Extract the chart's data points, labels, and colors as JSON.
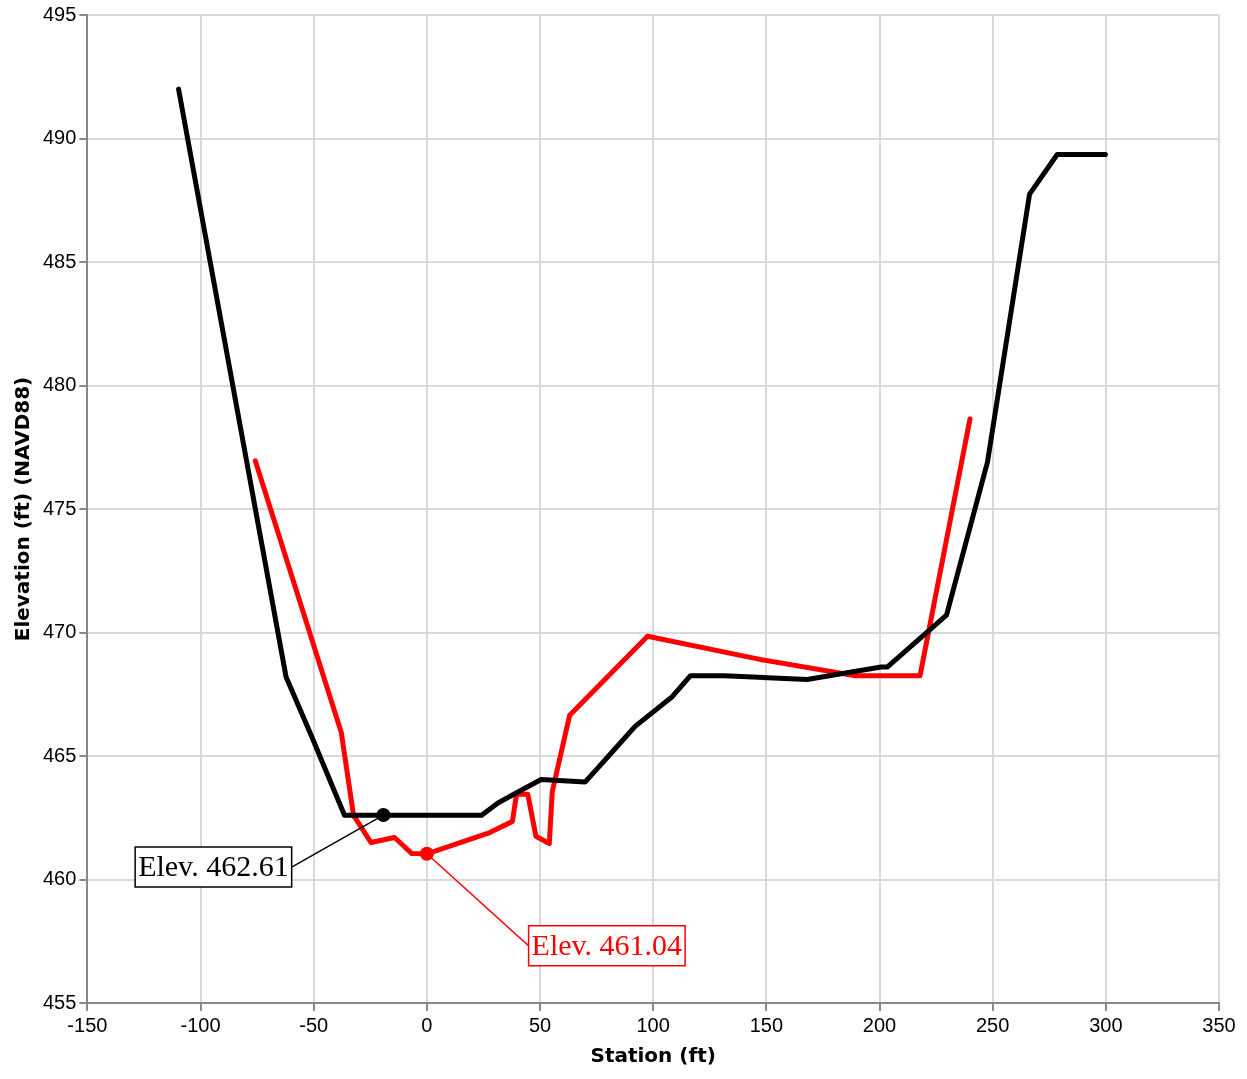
{
  "chart_data": {
    "type": "line",
    "xlabel": "Station (ft)",
    "ylabel": "Elevation (ft) (NAVD88)",
    "xlim": [
      -150,
      350
    ],
    "xticks": [
      -150,
      -100,
      -50,
      0,
      50,
      100,
      150,
      200,
      250,
      300,
      350
    ],
    "ylim": [
      455,
      495
    ],
    "yticks": [
      455,
      460,
      465,
      470,
      475,
      480,
      485,
      490,
      495
    ],
    "grid": true,
    "legend": false,
    "marker": "none",
    "line_style": "solid",
    "series": [
      {
        "color": "#000000",
        "x": [
          -109.7,
          -62.2,
          -51.4,
          -36.4,
          24.2,
          31.4,
          50.5,
          70,
          80.8,
          92,
          108.4,
          116.5,
          131.4,
          168,
          200.7,
          203.4,
          229.6,
          247.7,
          266.3,
          278.5,
          299.8
        ],
        "values": [
          492.0,
          468.2,
          465.9,
          462.6,
          462.6,
          463.1,
          464.05,
          463.95,
          465.05,
          466.2,
          467.4,
          468.25,
          468.25,
          468.1,
          468.6,
          468.6,
          470.7,
          476.9,
          487.75,
          489.35,
          489.35
        ]
      },
      {
        "color": "#ff0000",
        "x": [
          -75.8,
          -37.8,
          -32.4,
          -24.7,
          -14.3,
          -6.6,
          0,
          27.8,
          37.8,
          39.6,
          44.6,
          48.2,
          54.1,
          55.4,
          63.1,
          97.5,
          147.7,
          189.4,
          217.9,
          240
        ],
        "values": [
          476.95,
          465.95,
          462.6,
          461.5,
          461.7,
          461.05,
          461.04,
          461.9,
          462.35,
          463.45,
          463.45,
          461.75,
          461.45,
          463.55,
          466.65,
          469.85,
          468.9,
          468.25,
          468.25,
          478.65
        ]
      }
    ],
    "annotations": [
      {
        "text": "Elev. 462.61",
        "x": -19.2,
        "y": 462.61
      },
      {
        "text": "Elev. 461.04",
        "x": 0,
        "y": 461.04
      }
    ]
  }
}
